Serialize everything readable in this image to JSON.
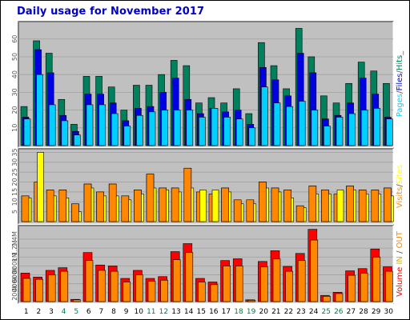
{
  "title": "Daily usage for November 2017",
  "colors": {
    "hits": "#00805c",
    "files": "#0000e0",
    "pages": "#00d0ff",
    "visits": "#ff8800",
    "sites": "#ffff00",
    "kbin": "#ff0000",
    "kbout": "#ff8800",
    "weekend_day": "#008040",
    "weekday_day": "#000000",
    "panel_bg": "#c0c0c0"
  },
  "labels": {
    "pages": "Pages",
    "files": "Files",
    "hits": "Hits",
    "visits": "Visits",
    "sites": "Sites",
    "volume": "Volume",
    "in": "IN",
    "out": "OUT",
    "slash": "/",
    "underscore": "_"
  },
  "chart_data": [
    {
      "type": "bar",
      "name": "hits-files-pages",
      "x": [
        1,
        2,
        3,
        4,
        5,
        6,
        7,
        8,
        9,
        10,
        11,
        12,
        13,
        14,
        15,
        16,
        17,
        18,
        19,
        20,
        21,
        22,
        23,
        24,
        25,
        26,
        27,
        28,
        29,
        30
      ],
      "weekend_days": [
        4,
        5,
        11,
        12,
        18,
        19,
        25,
        26
      ],
      "series": [
        {
          "name": "Hits",
          "values": [
            22,
            59,
            52,
            26,
            12,
            39,
            39,
            33,
            20,
            34,
            34,
            40,
            48,
            45,
            24,
            27,
            24,
            32,
            18,
            58,
            45,
            32,
            66,
            50,
            28,
            24,
            35,
            47,
            42,
            35
          ]
        },
        {
          "name": "Files",
          "values": [
            16,
            54,
            41,
            17,
            8,
            29,
            29,
            24,
            14,
            21,
            22,
            30,
            38,
            26,
            18,
            21,
            19,
            20,
            12,
            44,
            37,
            28,
            52,
            41,
            15,
            17,
            24,
            38,
            29,
            16
          ]
        },
        {
          "name": "Pages",
          "values": [
            15,
            40,
            23,
            14,
            6,
            23,
            23,
            18,
            11,
            17,
            19,
            20,
            20,
            20,
            16,
            21,
            16,
            15,
            10,
            33,
            24,
            22,
            25,
            20,
            11,
            16,
            18,
            20,
            21,
            15
          ]
        }
      ],
      "yticks": [
        10,
        20,
        30,
        40,
        50,
        60
      ],
      "ylim": [
        0,
        68
      ]
    },
    {
      "type": "bar",
      "name": "visits-sites",
      "x": [
        1,
        2,
        3,
        4,
        5,
        6,
        7,
        8,
        9,
        10,
        11,
        12,
        13,
        14,
        15,
        16,
        17,
        18,
        19,
        20,
        21,
        22,
        23,
        24,
        25,
        26,
        27,
        28,
        29,
        30
      ],
      "series": [
        {
          "name": "Visits",
          "values": [
            13,
            20,
            16,
            16,
            9,
            19,
            15,
            19,
            13,
            16,
            24,
            17,
            17,
            27,
            15,
            14,
            17,
            11,
            11,
            20,
            17,
            16,
            8,
            18,
            16,
            14,
            18,
            16,
            16,
            17
          ]
        },
        {
          "name": "Sites",
          "values": [
            12,
            35,
            13,
            12,
            5,
            17,
            13,
            13,
            11,
            14,
            17,
            16,
            15,
            17,
            16,
            16,
            15,
            9,
            9,
            17,
            15,
            12,
            7,
            14,
            14,
            16,
            16,
            14,
            14,
            13
          ]
        }
      ],
      "yticks": [
        5,
        10,
        15,
        20,
        25,
        30,
        35
      ],
      "ylim": [
        0,
        36
      ]
    },
    {
      "type": "bar",
      "name": "volume",
      "x": [
        1,
        2,
        3,
        4,
        5,
        6,
        7,
        8,
        9,
        10,
        11,
        12,
        13,
        14,
        15,
        16,
        17,
        18,
        19,
        20,
        21,
        22,
        23,
        24,
        25,
        26,
        27,
        28,
        29,
        30
      ],
      "series": [
        {
          "name": "Volume",
          "values": [
            640,
            550,
            700,
            760,
            50,
            1100,
            820,
            800,
            520,
            700,
            520,
            560,
            1120,
            1300,
            520,
            440,
            920,
            960,
            40,
            900,
            1140,
            790,
            1080,
            1620,
            140,
            210,
            690,
            740,
            1180,
            780
          ]
        },
        {
          "name": "KB Out",
          "values": [
            520,
            500,
            600,
            680,
            40,
            920,
            700,
            680,
            440,
            600,
            460,
            480,
            940,
            1100,
            440,
            380,
            800,
            800,
            30,
            780,
            960,
            680,
            920,
            1380,
            120,
            180,
            590,
            640,
            1000,
            680
          ]
        }
      ],
      "yticks": [
        "200k",
        "400k",
        "600k",
        "800k",
        "1M",
        "1.2M",
        "1.4M"
      ],
      "ylim": [
        0,
        1650
      ]
    }
  ]
}
